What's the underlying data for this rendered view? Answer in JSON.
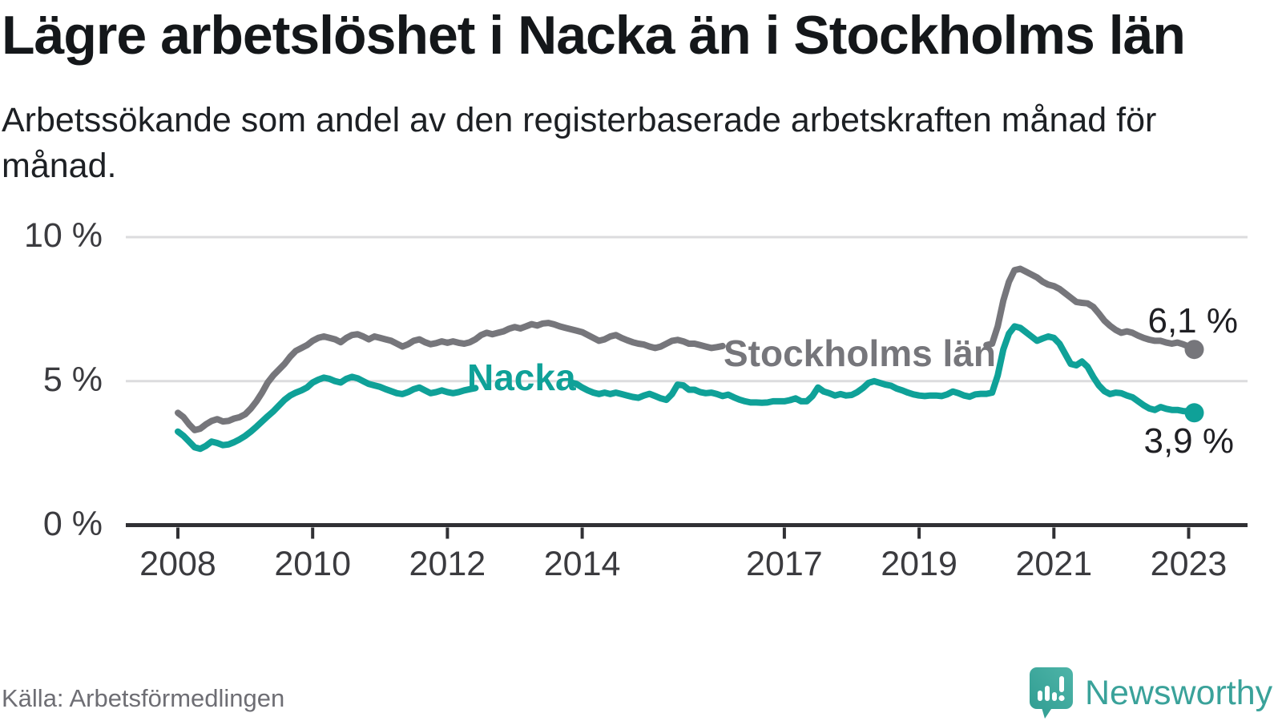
{
  "header": {
    "title": "Lägre arbetslöshet i Nacka än i Stockholms län",
    "subtitle": "Arbetssökande som andel av den registerbaserade arbetskraften månad för månad."
  },
  "source": {
    "label": "Källa: Arbetsförmedlingen"
  },
  "branding": {
    "name": "Newsworthy",
    "icon": "newsworthy-logo-icon",
    "color": "#3aa29a"
  },
  "chart_data": {
    "type": "line",
    "title": "Lägre arbetslöshet i Nacka än i Stockholms län",
    "xlabel": "",
    "ylabel": "Arbetssökande som andel av den registerbaserade arbetskraften",
    "x_start": {
      "year": 2008,
      "month": 1
    },
    "x_end": {
      "year": 2023,
      "month": 2
    },
    "x_frequency": "monthly",
    "ylim": [
      0,
      10.4
    ],
    "grid": "horizontal",
    "legend_position": "inline-on-line",
    "colors": {
      "grid": "#dcdcde",
      "axis": "#303034"
    },
    "yticks": [
      {
        "value": 0,
        "label": "0 %"
      },
      {
        "value": 5,
        "label": "5 %"
      },
      {
        "value": 10,
        "label": "10 %"
      }
    ],
    "xticks": [
      {
        "value": 2008,
        "label": "2008"
      },
      {
        "value": 2010,
        "label": "2010"
      },
      {
        "value": 2012,
        "label": "2012"
      },
      {
        "value": 2014,
        "label": "2014"
      },
      {
        "value": 2017,
        "label": "2017"
      },
      {
        "value": 2019,
        "label": "2019"
      },
      {
        "value": 2021,
        "label": "2021"
      },
      {
        "value": 2023,
        "label": "2023"
      }
    ],
    "series": [
      {
        "id": "stockholms-lan",
        "name": "Stockholms län",
        "color": "#76767b",
        "end_value": 6.1,
        "end_label": "6,1 %",
        "label_gap_years": [
          2016.1,
          2019.97
        ],
        "values": [
          3.9,
          3.75,
          3.5,
          3.3,
          3.35,
          3.5,
          3.62,
          3.68,
          3.6,
          3.62,
          3.7,
          3.75,
          3.85,
          4.05,
          4.3,
          4.6,
          4.95,
          5.2,
          5.4,
          5.6,
          5.85,
          6.05,
          6.15,
          6.25,
          6.4,
          6.5,
          6.55,
          6.5,
          6.45,
          6.35,
          6.5,
          6.6,
          6.63,
          6.55,
          6.45,
          6.55,
          6.5,
          6.45,
          6.4,
          6.3,
          6.2,
          6.28,
          6.4,
          6.45,
          6.35,
          6.28,
          6.32,
          6.38,
          6.33,
          6.38,
          6.33,
          6.3,
          6.35,
          6.45,
          6.6,
          6.68,
          6.63,
          6.68,
          6.73,
          6.82,
          6.88,
          6.83,
          6.9,
          6.98,
          6.93,
          7.0,
          7.02,
          6.97,
          6.9,
          6.85,
          6.8,
          6.75,
          6.7,
          6.6,
          6.5,
          6.4,
          6.45,
          6.55,
          6.6,
          6.5,
          6.42,
          6.35,
          6.3,
          6.27,
          6.2,
          6.15,
          6.2,
          6.3,
          6.4,
          6.43,
          6.38,
          6.3,
          6.3,
          6.25,
          6.2,
          6.15,
          6.18,
          6.22,
          6.28,
          6.3,
          6.25,
          6.3,
          6.4,
          6.42,
          6.38,
          6.32,
          6.28,
          6.3,
          6.33,
          6.38,
          6.4,
          6.35,
          6.3,
          6.35,
          6.45,
          6.48,
          6.42,
          6.38,
          6.33,
          6.3,
          6.28,
          6.25,
          6.2,
          6.15,
          6.12,
          6.2,
          6.3,
          6.33,
          6.28,
          6.22,
          6.2,
          6.18,
          6.2,
          6.22,
          6.25,
          6.2,
          6.18,
          6.28,
          6.38,
          6.4,
          6.33,
          6.28,
          6.25,
          6.2,
          6.25,
          6.3,
          6.9,
          7.8,
          8.45,
          8.85,
          8.9,
          8.8,
          8.7,
          8.6,
          8.45,
          8.35,
          8.3,
          8.2,
          8.05,
          7.9,
          7.75,
          7.72,
          7.7,
          7.58,
          7.35,
          7.1,
          6.92,
          6.78,
          6.68,
          6.73,
          6.68,
          6.58,
          6.5,
          6.44,
          6.4,
          6.4,
          6.34,
          6.3,
          6.34,
          6.28,
          6.2,
          6.1
        ]
      },
      {
        "id": "nacka",
        "name": "Nacka",
        "color": "#0fa198",
        "end_value": 3.9,
        "end_label": "3,9 %",
        "label_gap_years": [
          2012.45,
          2013.82
        ],
        "values": [
          3.25,
          3.1,
          2.9,
          2.7,
          2.65,
          2.75,
          2.9,
          2.85,
          2.78,
          2.8,
          2.88,
          2.98,
          3.1,
          3.25,
          3.42,
          3.6,
          3.78,
          3.95,
          4.15,
          4.35,
          4.5,
          4.6,
          4.68,
          4.78,
          4.95,
          5.05,
          5.12,
          5.08,
          5.0,
          4.95,
          5.08,
          5.15,
          5.1,
          5.0,
          4.9,
          4.85,
          4.8,
          4.72,
          4.65,
          4.58,
          4.55,
          4.62,
          4.72,
          4.78,
          4.68,
          4.58,
          4.62,
          4.68,
          4.62,
          4.58,
          4.62,
          4.68,
          4.72,
          4.76,
          4.8,
          4.84,
          4.8,
          4.84,
          4.88,
          4.95,
          4.98,
          4.95,
          5.0,
          5.05,
          5.02,
          5.06,
          5.1,
          5.05,
          5.0,
          4.96,
          4.95,
          4.9,
          4.78,
          4.68,
          4.6,
          4.55,
          4.6,
          4.55,
          4.6,
          4.55,
          4.5,
          4.45,
          4.42,
          4.5,
          4.56,
          4.48,
          4.4,
          4.35,
          4.55,
          4.88,
          4.85,
          4.7,
          4.7,
          4.62,
          4.58,
          4.6,
          4.55,
          4.48,
          4.53,
          4.44,
          4.36,
          4.3,
          4.26,
          4.26,
          4.25,
          4.26,
          4.3,
          4.3,
          4.3,
          4.34,
          4.4,
          4.3,
          4.3,
          4.48,
          4.78,
          4.64,
          4.58,
          4.5,
          4.55,
          4.5,
          4.52,
          4.62,
          4.76,
          4.94,
          5.0,
          4.94,
          4.88,
          4.84,
          4.74,
          4.68,
          4.6,
          4.54,
          4.5,
          4.48,
          4.5,
          4.5,
          4.48,
          4.54,
          4.64,
          4.58,
          4.5,
          4.46,
          4.54,
          4.56,
          4.56,
          4.6,
          5.2,
          6.1,
          6.65,
          6.9,
          6.85,
          6.7,
          6.55,
          6.4,
          6.48,
          6.55,
          6.5,
          6.3,
          5.95,
          5.6,
          5.55,
          5.68,
          5.5,
          5.15,
          4.85,
          4.65,
          4.55,
          4.6,
          4.58,
          4.5,
          4.44,
          4.3,
          4.16,
          4.05,
          4.0,
          4.1,
          4.04,
          4.0,
          4.0,
          3.96,
          3.95,
          3.9
        ]
      }
    ]
  }
}
